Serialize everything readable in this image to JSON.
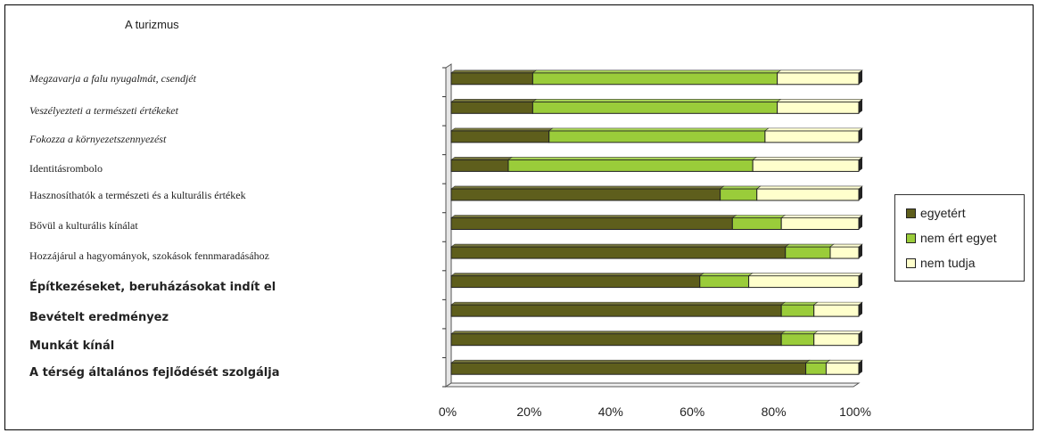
{
  "colors": {
    "egyetert": "#5e5e1c",
    "nem_ert_egyet": "#9acc3a",
    "nem_tudja": "#ffffcc"
  },
  "chart_data": {
    "type": "bar",
    "orientation": "horizontal",
    "stacked": "percent",
    "title": "A turizmus",
    "categories": [
      "Megzavarja a falu nyugalmát, csendjét",
      "Veszélyezteti a természeti értékeket",
      "Fokozza a környezetszennyezést",
      "Identitásrombolo",
      "Hasznosíthatók a természeti és a kulturális értékek",
      "Bővül a kulturális kínálat",
      "Hozzájárul a hagyományok, szokások fennmaradásához",
      "Építkezéseket, beruházásokat indít el",
      "Bevételt eredményez",
      "Munkát kínál",
      "A térség általános fejlődését szolgálja"
    ],
    "series": [
      {
        "name": "egyetért",
        "values": [
          20,
          20,
          24,
          14,
          66,
          69,
          82,
          61,
          81,
          81,
          87
        ]
      },
      {
        "name": "nem ért egyet",
        "values": [
          60,
          60,
          53,
          60,
          9,
          12,
          11,
          12,
          8,
          8,
          5
        ]
      },
      {
        "name": "nem tudja",
        "values": [
          20,
          20,
          23,
          26,
          25,
          19,
          7,
          27,
          11,
          11,
          8
        ]
      }
    ],
    "x_ticks": [
      "0%",
      "20%",
      "40%",
      "60%",
      "80%",
      "100%"
    ],
    "xlim": [
      0,
      100
    ],
    "legend_position": "right",
    "grid": false
  }
}
